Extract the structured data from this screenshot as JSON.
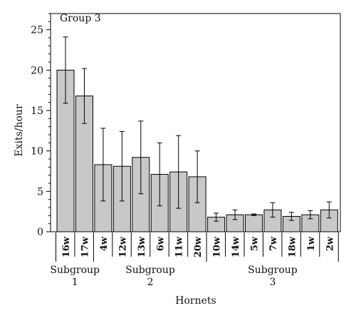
{
  "chart_data": {
    "type": "bar",
    "title": "Group 3",
    "xlabel": "Hornets",
    "ylabel": "Exits/hour",
    "ylim": [
      0,
      27
    ],
    "yticks": [
      0,
      5,
      10,
      15,
      20,
      25
    ],
    "grid": false,
    "bar_color": "#c8c8c8",
    "categories": [
      "16w",
      "17w",
      "4w",
      "12w",
      "13w",
      "6w",
      "11w",
      "20w",
      "10w",
      "14w",
      "5w",
      "7w",
      "18w",
      "1w",
      "2w"
    ],
    "values": [
      20.0,
      16.8,
      8.3,
      8.1,
      9.2,
      7.1,
      7.4,
      6.8,
      1.8,
      2.1,
      2.1,
      2.7,
      1.9,
      2.1,
      2.7
    ],
    "errors": [
      4.1,
      3.4,
      4.5,
      4.3,
      4.5,
      3.9,
      4.5,
      3.2,
      0.5,
      0.6,
      0.1,
      0.9,
      0.5,
      0.5,
      1.0
    ],
    "groups": [
      {
        "label": "Subgroup",
        "number": "1",
        "start": 0,
        "end": 1
      },
      {
        "label": "Subgroup",
        "number": "2",
        "start": 2,
        "end": 7
      },
      {
        "label": "Subgroup",
        "number": "3",
        "start": 8,
        "end": 14
      }
    ]
  }
}
